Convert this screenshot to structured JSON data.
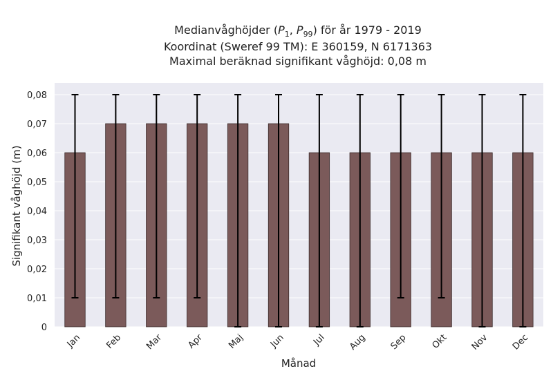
{
  "chart_data": {
    "type": "bar",
    "title_lines": [
      "Medianvåghöjder (P1, P99) för år 1979 - 2019",
      "Koordinat (Sweref 99 TM): E 360159, N 6171363",
      "Maximal beräknad signifikant våghöjd: 0,08 m"
    ],
    "title_parts": {
      "prefix": "Medianvåghöjder (",
      "p1": "P",
      "p1_sub": "1",
      "sep": ", ",
      "p99": "P",
      "p99_sub": "99",
      "suffix": ") för år 1979 - 2019"
    },
    "xlabel": "Månad",
    "ylabel": "Signifikant våghöjd (m)",
    "categories": [
      "Jan",
      "Feb",
      "Mar",
      "Apr",
      "Maj",
      "Jun",
      "Jul",
      "Aug",
      "Sep",
      "Okt",
      "Nov",
      "Dec"
    ],
    "values": [
      0.06,
      0.07,
      0.07,
      0.07,
      0.07,
      0.07,
      0.06,
      0.06,
      0.06,
      0.06,
      0.06,
      0.06
    ],
    "error_low": [
      0.01,
      0.01,
      0.01,
      0.01,
      0.0,
      0.0,
      0.0,
      0.0,
      0.01,
      0.01,
      0.0,
      0.0
    ],
    "error_high": [
      0.08,
      0.08,
      0.08,
      0.08,
      0.08,
      0.08,
      0.08,
      0.08,
      0.08,
      0.08,
      0.08,
      0.08
    ],
    "ylim": [
      0,
      0.08
    ],
    "yticks": [
      "0",
      "0,01",
      "0,02",
      "0,03",
      "0,04",
      "0,05",
      "0,06",
      "0,07",
      "0,08"
    ],
    "grid": true,
    "colors": {
      "bar": "#7b5a5a",
      "bar_edge": "#3a2a2a",
      "error_bar": "#000000",
      "plot_background": "#eaeaf2",
      "grid": "#ffffff"
    }
  }
}
